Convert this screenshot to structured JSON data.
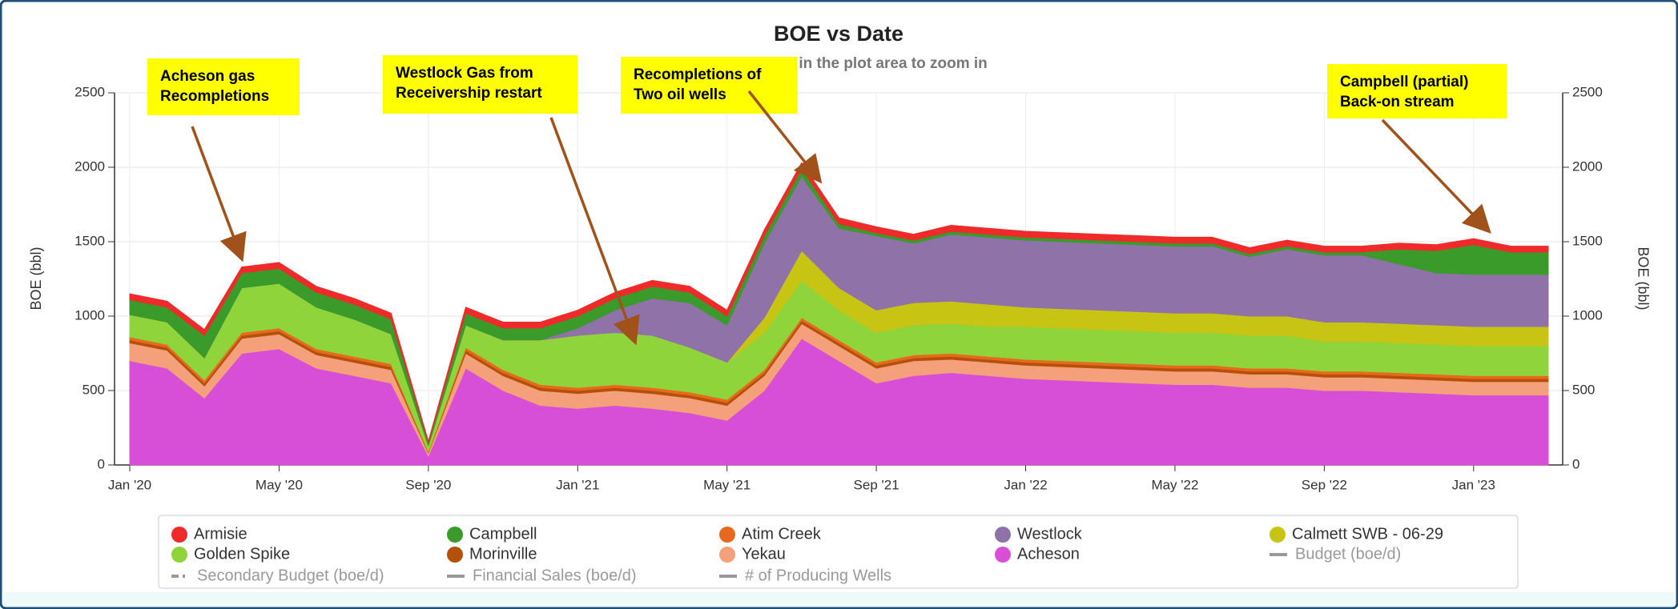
{
  "chart_data": {
    "type": "stacked_area",
    "title": "BOE vs Date",
    "subtitle": "Click and drag in the plot area to zoom in",
    "y_label": "BOE (bbl)",
    "y2_label": "BOE (bbl)",
    "x": [
      "2020-01",
      "2020-02",
      "2020-03",
      "2020-04",
      "2020-05",
      "2020-06",
      "2020-07",
      "2020-08",
      "2020-09",
      "2020-10",
      "2020-11",
      "2020-12",
      "2021-01",
      "2021-02",
      "2021-03",
      "2021-04",
      "2021-05",
      "2021-06",
      "2021-07",
      "2021-08",
      "2021-09",
      "2021-10",
      "2021-11",
      "2021-12",
      "2022-01",
      "2022-02",
      "2022-03",
      "2022-04",
      "2022-05",
      "2022-06",
      "2022-07",
      "2022-08",
      "2022-09",
      "2022-10",
      "2022-11",
      "2022-12",
      "2023-01",
      "2023-02",
      "2023-03"
    ],
    "xlim": [
      "2020-01",
      "2023-03"
    ],
    "xticks": [
      {
        "value": "2020-01",
        "label": "Jan '20"
      },
      {
        "value": "2020-05",
        "label": "May '20"
      },
      {
        "value": "2020-09",
        "label": "Sep '20"
      },
      {
        "value": "2021-01",
        "label": "Jan '21"
      },
      {
        "value": "2021-05",
        "label": "May '21"
      },
      {
        "value": "2021-09",
        "label": "Sep '21"
      },
      {
        "value": "2022-01",
        "label": "Jan '22"
      },
      {
        "value": "2022-05",
        "label": "May '22"
      },
      {
        "value": "2022-09",
        "label": "Sep '22"
      },
      {
        "value": "2023-01",
        "label": "Jan '23"
      }
    ],
    "ylim": [
      0,
      2500
    ],
    "yticks": [
      0,
      500,
      1000,
      1500,
      2000,
      2500
    ],
    "y2lim": [
      0,
      2500
    ],
    "y2ticks": [
      0,
      500,
      1000,
      1500,
      2000,
      2500
    ],
    "grid": true,
    "series": [
      {
        "name": "Acheson",
        "color": "#d64fd6",
        "values": [
          700,
          650,
          450,
          750,
          780,
          650,
          600,
          550,
          60,
          650,
          500,
          400,
          380,
          400,
          380,
          350,
          300,
          500,
          850,
          700,
          550,
          600,
          620,
          600,
          580,
          570,
          560,
          550,
          540,
          540,
          520,
          520,
          500,
          500,
          490,
          480,
          470,
          470,
          470
        ]
      },
      {
        "name": "Yekau",
        "color": "#f4a07a",
        "values": [
          120,
          120,
          80,
          100,
          100,
          90,
          90,
          90,
          20,
          100,
          100,
          100,
          100,
          100,
          100,
          100,
          100,
          100,
          100,
          100,
          100,
          100,
          90,
          90,
          90,
          90,
          90,
          90,
          90,
          90,
          90,
          90,
          90,
          90,
          90,
          90,
          90,
          90,
          90
        ]
      },
      {
        "name": "Morinville",
        "color": "#b5500b",
        "values": [
          20,
          20,
          20,
          20,
          20,
          20,
          20,
          20,
          5,
          20,
          20,
          20,
          20,
          20,
          20,
          20,
          20,
          20,
          20,
          20,
          20,
          20,
          20,
          20,
          20,
          20,
          20,
          20,
          20,
          20,
          20,
          20,
          20,
          20,
          20,
          20,
          20,
          20,
          20
        ]
      },
      {
        "name": "Atim Creek",
        "color": "#e8681e",
        "values": [
          20,
          20,
          20,
          20,
          20,
          20,
          20,
          20,
          5,
          20,
          20,
          20,
          20,
          20,
          20,
          20,
          20,
          20,
          20,
          20,
          20,
          20,
          20,
          20,
          20,
          20,
          20,
          20,
          20,
          20,
          20,
          20,
          20,
          20,
          20,
          20,
          20,
          20,
          20
        ]
      },
      {
        "name": "Golden Spike",
        "color": "#8fd43a",
        "values": [
          150,
          150,
          150,
          300,
          300,
          280,
          250,
          200,
          40,
          150,
          200,
          300,
          350,
          350,
          350,
          300,
          250,
          250,
          250,
          200,
          200,
          200,
          200,
          200,
          220,
          220,
          220,
          220,
          220,
          220,
          220,
          220,
          200,
          200,
          200,
          200,
          200,
          200,
          200
        ]
      },
      {
        "name": "Calmett SWB - 06-29",
        "color": "#c8c414",
        "values": [
          0,
          0,
          0,
          0,
          0,
          0,
          0,
          0,
          0,
          0,
          0,
          0,
          0,
          0,
          0,
          0,
          0,
          100,
          200,
          150,
          150,
          150,
          150,
          150,
          130,
          130,
          130,
          130,
          130,
          130,
          130,
          130,
          130,
          130,
          130,
          130,
          130,
          130,
          130
        ]
      },
      {
        "name": "Westlock",
        "color": "#8e72a8",
        "values": [
          0,
          0,
          0,
          0,
          0,
          0,
          0,
          0,
          0,
          0,
          0,
          0,
          50,
          150,
          250,
          300,
          250,
          500,
          500,
          400,
          500,
          400,
          450,
          450,
          450,
          450,
          450,
          450,
          450,
          450,
          400,
          450,
          450,
          450,
          400,
          350,
          350,
          350,
          350
        ]
      },
      {
        "name": "Campbell",
        "color": "#3a9a2a",
        "values": [
          100,
          100,
          150,
          100,
          100,
          100,
          100,
          100,
          20,
          80,
          80,
          80,
          80,
          80,
          80,
          70,
          60,
          50,
          50,
          30,
          20,
          20,
          20,
          20,
          20,
          20,
          20,
          20,
          20,
          20,
          20,
          20,
          20,
          20,
          100,
          150,
          200,
          150,
          150
        ]
      },
      {
        "name": "Armisie",
        "color": "#ee2a2a",
        "values": [
          40,
          40,
          40,
          40,
          40,
          40,
          40,
          40,
          10,
          40,
          40,
          40,
          40,
          40,
          40,
          40,
          40,
          40,
          40,
          40,
          40,
          40,
          40,
          40,
          40,
          40,
          40,
          40,
          40,
          40,
          40,
          40,
          40,
          40,
          40,
          40,
          40,
          40,
          40
        ]
      }
    ],
    "legend_order": [
      "Armisie",
      "Campbell",
      "Atim Creek",
      "Westlock",
      "Calmett SWB - 06-29",
      "Golden Spike",
      "Morinville",
      "Yekau",
      "Acheson"
    ],
    "inactive_legend": [
      "Budget (boe/d)",
      "Secondary Budget (boe/d)",
      "Financial Sales (boe/d)",
      "# of Producing Wells"
    ],
    "annotations": [
      {
        "lines": [
          "Acheson gas",
          "Recompletions"
        ]
      },
      {
        "lines": [
          "Westlock Gas from",
          "Receivership restart"
        ]
      },
      {
        "lines": [
          "Recompletions of",
          "Two oil wells"
        ]
      },
      {
        "lines": [
          "Campbell (partial)",
          "Back-on stream"
        ]
      }
    ]
  }
}
